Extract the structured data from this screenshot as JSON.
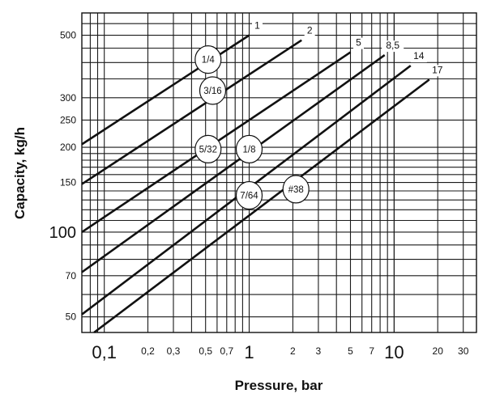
{
  "chart_data": {
    "type": "line",
    "xlabel": "Pressure, bar",
    "ylabel": "Capacity, kg/h",
    "xscale": "log",
    "yscale": "log",
    "xlim": [
      0.07,
      37
    ],
    "ylim": [
      44,
      600
    ],
    "grid": true,
    "x_ticks": [
      {
        "value": 0.1,
        "label": "0,1",
        "major": true
      },
      {
        "value": 0.2,
        "label": "0,2",
        "major": false
      },
      {
        "value": 0.3,
        "label": "0,3",
        "major": false
      },
      {
        "value": 0.5,
        "label": "0,5",
        "major": false
      },
      {
        "value": 0.7,
        "label": "0,7",
        "major": false
      },
      {
        "value": 1,
        "label": "1",
        "major": true
      },
      {
        "value": 2,
        "label": "2",
        "major": false
      },
      {
        "value": 3,
        "label": "3",
        "major": false
      },
      {
        "value": 5,
        "label": "5",
        "major": false
      },
      {
        "value": 7,
        "label": "7",
        "major": false
      },
      {
        "value": 10,
        "label": "10",
        "major": true
      },
      {
        "value": 20,
        "label": "20",
        "major": false
      },
      {
        "value": 30,
        "label": "30",
        "major": false
      }
    ],
    "y_ticks": [
      {
        "value": 50,
        "label": "50",
        "major": false
      },
      {
        "value": 70,
        "label": "70",
        "major": false
      },
      {
        "value": 100,
        "label": "100",
        "major": true
      },
      {
        "value": 150,
        "label": "150",
        "major": false
      },
      {
        "value": 200,
        "label": "200",
        "major": false
      },
      {
        "value": 250,
        "label": "250",
        "major": false
      },
      {
        "value": 300,
        "label": "300",
        "major": false
      },
      {
        "value": 500,
        "label": "500",
        "major": false
      }
    ],
    "series": [
      {
        "name": "1",
        "x": [
          0.07,
          1.0
        ],
        "y": [
          205,
          500
        ]
      },
      {
        "name": "2",
        "x": [
          0.07,
          2.3
        ],
        "y": [
          148,
          480
        ]
      },
      {
        "name": "5",
        "x": [
          0.07,
          5.0
        ],
        "y": [
          100,
          435
        ]
      },
      {
        "name": "8,5",
        "x": [
          0.07,
          8.6
        ],
        "y": [
          72,
          425
        ]
      },
      {
        "name": "14",
        "x": [
          0.07,
          13.0
        ],
        "y": [
          51,
          390
        ]
      },
      {
        "name": "17",
        "x": [
          0.085,
          17.5
        ],
        "y": [
          44,
          348
        ]
      }
    ],
    "annotations": [
      {
        "label": "1/4",
        "x": 0.52,
        "y": 410
      },
      {
        "label": "3/16",
        "x": 0.56,
        "y": 318
      },
      {
        "label": "5/32",
        "x": 0.52,
        "y": 197
      },
      {
        "label": "1/8",
        "x": 1.0,
        "y": 197
      },
      {
        "label": "7/64",
        "x": 1.0,
        "y": 135
      },
      {
        "label": "#38",
        "x": 2.1,
        "y": 142
      }
    ]
  }
}
